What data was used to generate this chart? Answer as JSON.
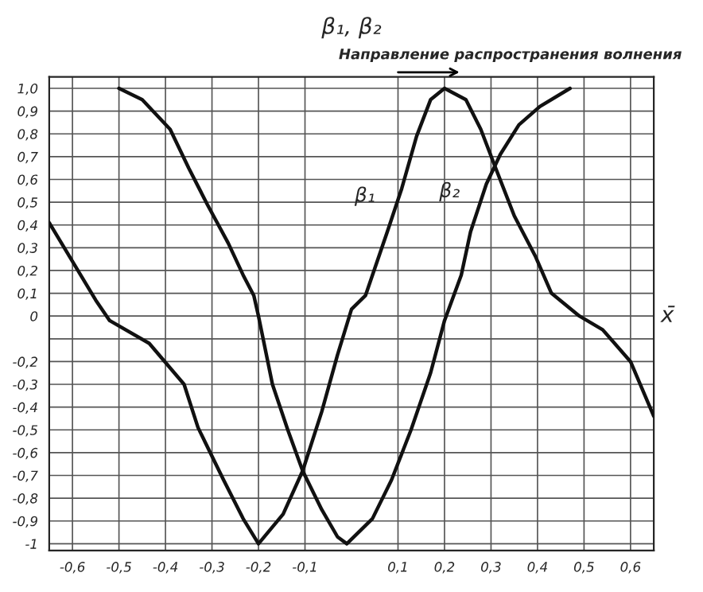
{
  "chart_data": {
    "type": "line",
    "xlabel": "x̄",
    "ylabel": "β₁, β₂",
    "annotations": [
      "Направление распространения волнения"
    ],
    "series": [
      {
        "name": "β₁",
        "color": "#111111",
        "x": [
          -0.65,
          -0.55,
          -0.52,
          -0.435,
          -0.36,
          -0.33,
          -0.275,
          -0.233,
          -0.2,
          -0.147,
          -0.105,
          -0.064,
          -0.03,
          0.0,
          0.03,
          0.077,
          0.108,
          0.14,
          0.17,
          0.2,
          0.246,
          0.278,
          0.31,
          0.35,
          0.396,
          0.43,
          0.49,
          0.54,
          0.6,
          0.65
        ],
        "values": [
          0.41,
          0.07,
          -0.02,
          -0.12,
          -0.3,
          -0.49,
          -0.72,
          -0.89,
          -1.0,
          -0.87,
          -0.68,
          -0.42,
          -0.17,
          0.03,
          0.09,
          0.37,
          0.56,
          0.79,
          0.95,
          1.0,
          0.95,
          0.82,
          0.65,
          0.44,
          0.26,
          0.1,
          0.0,
          -0.06,
          -0.2,
          -0.44
        ]
      },
      {
        "name": "β₂",
        "color": "#111111",
        "x": [
          -0.5,
          -0.45,
          -0.39,
          -0.35,
          -0.31,
          -0.265,
          -0.233,
          -0.21,
          -0.2,
          -0.17,
          -0.137,
          -0.105,
          -0.064,
          -0.03,
          -0.01,
          0.045,
          0.086,
          0.128,
          0.17,
          0.2,
          0.236,
          0.256,
          0.29,
          0.32,
          0.36,
          0.405,
          0.47
        ],
        "values": [
          1.0,
          0.95,
          0.82,
          0.65,
          0.49,
          0.32,
          0.18,
          0.09,
          0.0,
          -0.3,
          -0.5,
          -0.68,
          -0.85,
          -0.97,
          -1.0,
          -0.89,
          -0.72,
          -0.5,
          -0.25,
          -0.02,
          0.18,
          0.37,
          0.58,
          0.71,
          0.84,
          0.92,
          1.0
        ]
      }
    ],
    "xlim": [
      -0.65,
      0.65
    ],
    "ylim": [
      -1.03,
      1.05
    ],
    "xticks": [
      {
        "value": -0.6,
        "label": "-0,6"
      },
      {
        "value": -0.5,
        "label": "-0,5"
      },
      {
        "value": -0.4,
        "label": "-0,4"
      },
      {
        "value": -0.3,
        "label": "-0,3"
      },
      {
        "value": -0.2,
        "label": "-0,2"
      },
      {
        "value": -0.1,
        "label": "-0,1"
      },
      {
        "value": 0.1,
        "label": "0,1"
      },
      {
        "value": 0.2,
        "label": "0,2"
      },
      {
        "value": 0.3,
        "label": "0,3"
      },
      {
        "value": 0.4,
        "label": "0,4"
      },
      {
        "value": 0.5,
        "label": "0,5"
      },
      {
        "value": 0.6,
        "label": "0,6"
      }
    ],
    "yticks": [
      {
        "value": -1,
        "label": "-1"
      },
      {
        "value": -0.9,
        "label": "-0,9"
      },
      {
        "value": -0.8,
        "label": "-0,8"
      },
      {
        "value": -0.7,
        "label": "-0,7"
      },
      {
        "value": -0.6,
        "label": "-0,6"
      },
      {
        "value": -0.5,
        "label": "-0,5"
      },
      {
        "value": -0.4,
        "label": "-0,4"
      },
      {
        "value": -0.3,
        "label": "-0,3"
      },
      {
        "value": -0.2,
        "label": "-0,2"
      },
      {
        "value": -0.1,
        "label": null
      },
      {
        "value": 0,
        "label": "0"
      },
      {
        "value": 0.1,
        "label": "0,1"
      },
      {
        "value": 0.2,
        "label": "0,2"
      },
      {
        "value": 0.3,
        "label": "0,3"
      },
      {
        "value": 0.4,
        "label": "0,4"
      },
      {
        "value": 0.5,
        "label": "0,5"
      },
      {
        "value": 0.6,
        "label": "0,6"
      },
      {
        "value": 0.7,
        "label": "0,7"
      },
      {
        "value": 0.8,
        "label": "0,8"
      },
      {
        "value": 0.9,
        "label": "0,9"
      },
      {
        "value": 1.0,
        "label": "1,0"
      }
    ],
    "grid": true,
    "legend": false,
    "marker": "none",
    "line_style": "solid"
  }
}
